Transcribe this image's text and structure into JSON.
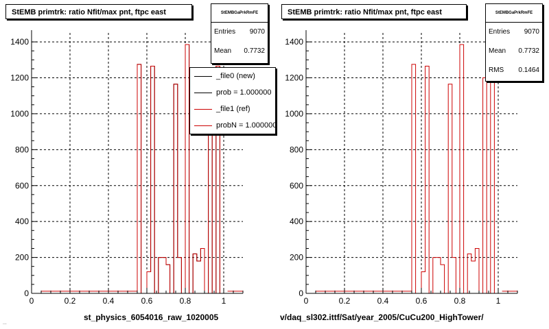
{
  "chart_data": [
    {
      "type": "histogram",
      "title": "StEMB primtrk: ratio Nfit/max pnt, ftpc east",
      "xlabel": "st_physics_6054016_raw_1020005",
      "xlim": [
        0,
        1.1
      ],
      "ylim": [
        0,
        1450
      ],
      "xticks": [
        "0",
        "0.2",
        "0.4",
        "0.6",
        "0.8",
        "1"
      ],
      "yticks": [
        "0",
        "200",
        "400",
        "600",
        "800",
        "1000",
        "1200",
        "1400"
      ],
      "grid": true,
      "stats": {
        "header": "StEMBGaPrkRmFE",
        "entries_label": "Entries",
        "entries": "9070",
        "mean_label": "Mean",
        "mean": "0.7732"
      },
      "legend": {
        "placement": "top-right",
        "entries": [
          "_file0 (new)",
          "prob = 1.000000",
          "_file1 (ref)",
          "probN = 1.000000"
        ]
      },
      "series": [
        {
          "name": "_file0 (new)",
          "x": [
            0.55,
            0.57,
            0.58,
            0.6,
            0.62,
            0.64,
            0.66,
            0.68,
            0.7,
            0.72,
            0.74,
            0.76,
            0.78,
            0.8,
            0.82,
            0.84,
            0.86,
            0.88,
            0.9,
            0.92,
            0.94,
            0.96,
            0.98,
            1.0
          ],
          "values": [
            1275,
            0,
            0,
            120,
            1265,
            0,
            200,
            200,
            160,
            0,
            1165,
            200,
            0,
            1385,
            0,
            220,
            180,
            250,
            0,
            1200,
            0,
            1265,
            0,
            0
          ]
        },
        {
          "name": "_file1 (ref)",
          "x": [
            0.55,
            0.57,
            0.58,
            0.6,
            0.62,
            0.64,
            0.66,
            0.68,
            0.7,
            0.72,
            0.74,
            0.76,
            0.78,
            0.8,
            0.82,
            0.84,
            0.86,
            0.88,
            0.9,
            0.92,
            0.94,
            0.96,
            0.98,
            1.0
          ],
          "values": [
            1275,
            0,
            0,
            120,
            1265,
            0,
            200,
            200,
            160,
            0,
            1165,
            200,
            0,
            1385,
            0,
            220,
            180,
            250,
            0,
            1200,
            0,
            1265,
            0,
            0
          ]
        }
      ]
    },
    {
      "type": "histogram",
      "title": "StEMB primtrk: ratio Nfit/max pnt, ftpc east",
      "xlabel": "v/daq_sl302.ittf/Sat/year_2005/CuCu200_HighTower/",
      "xlim": [
        0,
        1.1
      ],
      "ylim": [
        0,
        1450
      ],
      "xticks": [
        "0",
        "0.2",
        "0.4",
        "0.6",
        "0.8",
        "1"
      ],
      "yticks": [
        "0",
        "200",
        "400",
        "600",
        "800",
        "1000",
        "1200",
        "1400"
      ],
      "grid": true,
      "stats": {
        "header": "StEMBGaPrkRmFE",
        "entries_label": "Entries",
        "entries": "9070",
        "mean_label": "Mean",
        "mean": "0.7732",
        "rms_label": "RMS",
        "rms": "0.1464"
      },
      "series": [
        {
          "x": [
            0.55,
            0.57,
            0.58,
            0.6,
            0.62,
            0.64,
            0.66,
            0.68,
            0.7,
            0.72,
            0.74,
            0.76,
            0.78,
            0.8,
            0.82,
            0.84,
            0.86,
            0.88,
            0.9,
            0.92,
            0.94,
            0.96,
            0.98,
            1.0
          ],
          "values": [
            1275,
            0,
            0,
            120,
            1265,
            0,
            200,
            200,
            160,
            0,
            1165,
            200,
            0,
            1385,
            0,
            220,
            180,
            250,
            0,
            1200,
            0,
            1265,
            0,
            0
          ]
        }
      ]
    }
  ],
  "colors": {
    "new": "#000000",
    "ref": "#cc0000",
    "frame": "#000000",
    "grid": "#000000"
  },
  "footer": "..."
}
